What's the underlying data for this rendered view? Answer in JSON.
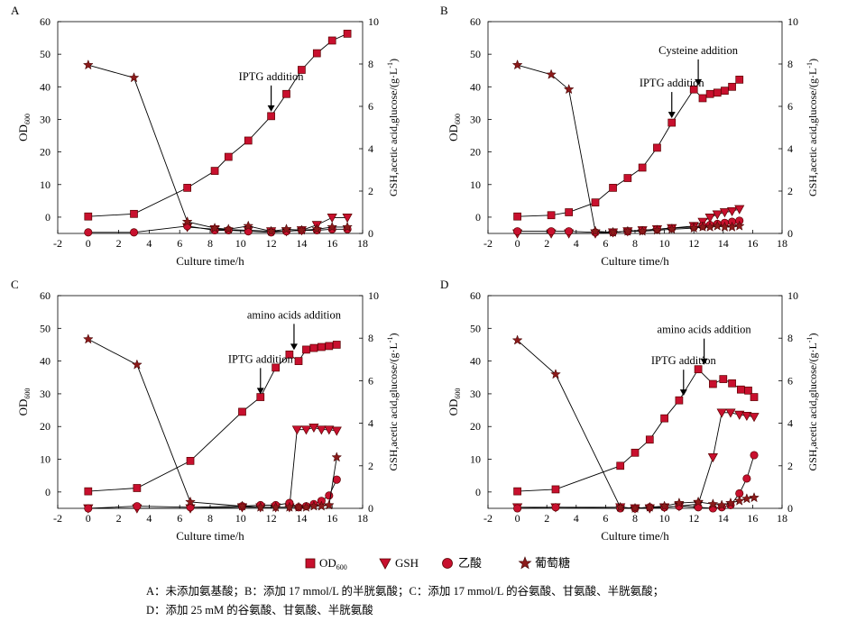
{
  "colors": {
    "marker": "#c8102e",
    "edge": "#5a0000",
    "line": "#000000"
  },
  "legend": [
    {
      "symbol": "square",
      "label": "OD",
      "sub": "600"
    },
    {
      "symbol": "triangle-down",
      "label": "GSH",
      "sub": ""
    },
    {
      "symbol": "circle",
      "label": "乙酸",
      "sub": ""
    },
    {
      "symbol": "star",
      "label": "葡萄糖",
      "sub": ""
    }
  ],
  "caption": {
    "line1": "A：未添加氨基酸；B：添加 17 mmol/L 的半胱氨酸；C：添加 17 mmol/L 的谷氨酸、甘氨酸、半胱氨酸；",
    "line2": "D：添加 25 mM 的谷氨酸、甘氨酸、半胱氨酸"
  },
  "chart_data": [
    {
      "type": "line",
      "panel": "A",
      "xlabel": "Culture time/h",
      "ylabel": "OD",
      "ylabel_sub": "600",
      "y2label": "GSH,acetic acid,glucose/(g·L",
      "y2label_sup": "-1",
      "y2label_end": ")",
      "xlim": [
        -2,
        18
      ],
      "xticks": [
        -2,
        0,
        2,
        4,
        6,
        8,
        10,
        12,
        14,
        16,
        18
      ],
      "ylim": [
        -5,
        60
      ],
      "yticks": [
        0,
        10,
        20,
        30,
        40,
        50,
        60
      ],
      "y2lim": [
        0,
        10
      ],
      "y2ticks": [
        0,
        2,
        4,
        6,
        8,
        10
      ],
      "series": [
        {
          "name": "OD600",
          "axis": "left",
          "marker": "square",
          "x": [
            0,
            3,
            6.5,
            8.3,
            9.2,
            10.5,
            12,
            13,
            14,
            15,
            16,
            17
          ],
          "y": [
            0.2,
            1.0,
            9.0,
            14.2,
            18.5,
            23.5,
            31,
            37.8,
            45.2,
            50.3,
            54.2,
            56.3
          ]
        },
        {
          "name": "GSH",
          "axis": "right",
          "marker": "triangle-down",
          "x": [
            6.5,
            8.3,
            10.5,
            12,
            13,
            14,
            15,
            16,
            17
          ],
          "y": [
            0.3,
            0.2,
            0.15,
            0.1,
            0.1,
            0.15,
            0.4,
            0.75,
            0.75
          ]
        },
        {
          "name": "乙酸",
          "axis": "right",
          "marker": "circle",
          "x": [
            0,
            3,
            6.5,
            8.3,
            9.2,
            10.5,
            12,
            13,
            14,
            15,
            16,
            17
          ],
          "y": [
            0.05,
            0.05,
            0.35,
            0.15,
            0.15,
            0.1,
            0.05,
            0.1,
            0.15,
            0.15,
            0.2,
            0.2
          ]
        },
        {
          "name": "葡萄糖",
          "axis": "right",
          "marker": "star",
          "x": [
            0,
            3,
            6.5,
            8.3,
            9.2,
            10.5,
            12,
            13,
            14,
            15,
            16,
            17
          ],
          "y": [
            7.95,
            7.35,
            0.55,
            0.25,
            0.2,
            0.35,
            0.1,
            0.2,
            0.15,
            0.2,
            0.3,
            0.3
          ]
        }
      ],
      "annotations": [
        {
          "text": "IPTG addition",
          "x": 12,
          "y": 31
        }
      ]
    },
    {
      "type": "line",
      "panel": "B",
      "xlabel": "Culture time/h",
      "ylabel": "OD",
      "ylabel_sub": "600",
      "y2label": "GSH,acetic acid,glucose/(g·L",
      "y2label_sup": "-1",
      "y2label_end": ")",
      "xlim": [
        -2,
        18
      ],
      "xticks": [
        -2,
        0,
        2,
        4,
        6,
        8,
        10,
        12,
        14,
        16,
        18
      ],
      "ylim": [
        -5,
        60
      ],
      "yticks": [
        0,
        10,
        20,
        30,
        40,
        50,
        60
      ],
      "y2lim": [
        0,
        10
      ],
      "y2ticks": [
        0,
        2,
        4,
        6,
        8,
        10
      ],
      "series": [
        {
          "name": "OD600",
          "axis": "left",
          "marker": "square",
          "x": [
            0,
            2.3,
            3.5,
            5.3,
            6.5,
            7.5,
            8.5,
            9.5,
            10.5,
            12,
            12.6,
            13.1,
            13.6,
            14.1,
            14.6,
            15.1
          ],
          "y": [
            0.2,
            0.6,
            1.5,
            4.5,
            9,
            12,
            15.2,
            21.3,
            29,
            39.2,
            36.5,
            37.8,
            38.2,
            38.8,
            40,
            42.2
          ]
        },
        {
          "name": "GSH",
          "axis": "right",
          "marker": "triangle-down",
          "x": [
            0,
            2.3,
            3.5,
            5.3,
            6.5,
            7.5,
            8.5,
            9.5,
            10.5,
            12,
            12.6,
            13.1,
            13.6,
            14.1,
            14.6,
            15.1
          ],
          "y": [
            0.0,
            0.0,
            0.0,
            0.0,
            0.05,
            0.1,
            0.15,
            0.2,
            0.25,
            0.35,
            0.55,
            0.75,
            0.9,
            1.0,
            1.05,
            1.15
          ]
        },
        {
          "name": "乙酸",
          "axis": "right",
          "marker": "circle",
          "x": [
            0,
            2.3,
            3.5,
            5.3,
            6.5,
            7.5,
            8.5,
            9.5,
            10.5,
            12,
            12.6,
            13.1,
            13.6,
            14.1,
            14.6,
            15.1
          ],
          "y": [
            0.1,
            0.1,
            0.1,
            0.05,
            0.05,
            0.1,
            0.15,
            0.2,
            0.25,
            0.3,
            0.35,
            0.4,
            0.45,
            0.5,
            0.55,
            0.6
          ]
        },
        {
          "name": "葡萄糖",
          "axis": "right",
          "marker": "star",
          "x": [
            0,
            2.3,
            3.5,
            5.3,
            6.5,
            7.5,
            8.5,
            9.5,
            10.5,
            12,
            12.6,
            13.1,
            13.6,
            14.1,
            14.6,
            15.1
          ],
          "y": [
            7.95,
            7.5,
            6.8,
            0.1,
            0.05,
            0.1,
            0.1,
            0.15,
            0.2,
            0.25,
            0.3,
            0.3,
            0.35,
            0.3,
            0.3,
            0.35
          ]
        }
      ],
      "annotations": [
        {
          "text": "IPTG addition",
          "x": 10.5,
          "y": 29
        },
        {
          "text": "Cysteine addition",
          "x": 12.3,
          "y": 39
        }
      ]
    },
    {
      "type": "line",
      "panel": "C",
      "xlabel": "Culture time/h",
      "ylabel": "OD",
      "ylabel_sub": "600",
      "y2label": "GSH,acetic acid,glucose/(g·L",
      "y2label_sup": "-1",
      "y2label_end": ")",
      "xlim": [
        -2,
        18
      ],
      "xticks": [
        -2,
        0,
        2,
        4,
        6,
        8,
        10,
        12,
        14,
        16,
        18
      ],
      "ylim": [
        -5,
        60
      ],
      "yticks": [
        0,
        10,
        20,
        30,
        40,
        50,
        60
      ],
      "y2lim": [
        0,
        10
      ],
      "y2ticks": [
        0,
        2,
        4,
        6,
        8,
        10
      ],
      "series": [
        {
          "name": "OD600",
          "axis": "left",
          "marker": "square",
          "x": [
            0,
            3.2,
            6.7,
            10.1,
            11.3,
            12.3,
            13.2,
            13.8,
            14.3,
            14.8,
            15.3,
            15.8,
            16.3
          ],
          "y": [
            0.2,
            1.2,
            9.5,
            24.5,
            29,
            38,
            42,
            40,
            43.5,
            44,
            44.3,
            44.6,
            45
          ]
        },
        {
          "name": "GSH",
          "axis": "right",
          "marker": "triangle-down",
          "x": [
            0,
            3.2,
            6.7,
            10.1,
            11.3,
            12.3,
            13.2,
            13.7,
            14.3,
            14.8,
            15.3,
            15.8,
            16.3
          ],
          "y": [
            0.0,
            0.0,
            0.0,
            0.05,
            0.05,
            0.05,
            0.05,
            3.7,
            3.7,
            3.8,
            3.7,
            3.7,
            3.65
          ]
        },
        {
          "name": "乙酸",
          "axis": "right",
          "marker": "circle",
          "x": [
            0,
            3.2,
            6.7,
            10.1,
            11.3,
            12.3,
            13.2,
            13.8,
            14.3,
            14.8,
            15.3,
            15.8,
            16.3
          ],
          "y": [
            0.0,
            0.1,
            0.05,
            0.1,
            0.15,
            0.15,
            0.25,
            0.05,
            0.1,
            0.2,
            0.35,
            0.6,
            1.35
          ]
        },
        {
          "name": "葡萄糖",
          "axis": "right",
          "marker": "star",
          "x": [
            0,
            3.2,
            6.7,
            10.1,
            11.3,
            12.3,
            13.2,
            13.8,
            14.3,
            14.8,
            15.3,
            15.8,
            16.3
          ],
          "y": [
            7.95,
            6.75,
            0.3,
            0.1,
            0.05,
            0.05,
            0.05,
            0.05,
            0.05,
            0.1,
            0.1,
            0.15,
            2.4
          ]
        }
      ],
      "annotations": [
        {
          "text": "IPTG addition",
          "x": 11.3,
          "y": 28.5
        },
        {
          "text": "amino acids addition",
          "x": 13.5,
          "y": 42
        }
      ]
    },
    {
      "type": "line",
      "panel": "D",
      "xlabel": "Culture time/h",
      "ylabel": "OD",
      "ylabel_sub": "600",
      "y2label": "GSH,acetic acid,glucose/(g·L",
      "y2label_sup": "-1",
      "y2label_end": ")",
      "xlim": [
        -2,
        18
      ],
      "xticks": [
        -2,
        0,
        2,
        4,
        6,
        8,
        10,
        12,
        14,
        16,
        18
      ],
      "ylim": [
        -5,
        60
      ],
      "yticks": [
        0,
        10,
        20,
        30,
        40,
        50,
        60
      ],
      "y2lim": [
        0,
        10
      ],
      "y2ticks": [
        0,
        2,
        4,
        6,
        8,
        10
      ],
      "series": [
        {
          "name": "OD600",
          "axis": "left",
          "marker": "square",
          "x": [
            0,
            2.6,
            7,
            8,
            9,
            10,
            11,
            12.3,
            13.3,
            14,
            14.6,
            15.2,
            15.7,
            16.1
          ],
          "y": [
            0.2,
            0.8,
            8,
            12,
            16,
            22.5,
            28,
            37.5,
            33,
            34.5,
            33.2,
            31.3,
            31,
            29
          ]
        },
        {
          "name": "GSH",
          "axis": "right",
          "marker": "triangle-down",
          "x": [
            0,
            2.6,
            7,
            8,
            9,
            10,
            11,
            12.3,
            13.3,
            13.9,
            14.5,
            15.1,
            15.6,
            16.1
          ],
          "y": [
            0.05,
            0.05,
            0.05,
            0.0,
            0.0,
            0.05,
            0.1,
            0.2,
            2.4,
            4.5,
            4.5,
            4.4,
            4.35,
            4.3
          ]
        },
        {
          "name": "乙酸",
          "axis": "right",
          "marker": "circle",
          "x": [
            0,
            2.6,
            7,
            8,
            9,
            10,
            11,
            12.3,
            13.3,
            13.9,
            14.5,
            15.1,
            15.6,
            16.1
          ],
          "y": [
            0.0,
            0.05,
            0.0,
            0.0,
            0.05,
            0.05,
            0.1,
            0.05,
            0.0,
            0.05,
            0.15,
            0.7,
            1.4,
            2.5
          ]
        },
        {
          "name": "葡萄糖",
          "axis": "right",
          "marker": "star",
          "x": [
            0,
            2.6,
            7,
            8,
            9,
            10,
            11,
            12.3,
            13.3,
            13.9,
            14.5,
            15.1,
            15.6,
            16.1
          ],
          "y": [
            7.9,
            6.3,
            0.05,
            0.0,
            0.05,
            0.1,
            0.25,
            0.3,
            0.2,
            0.15,
            0.25,
            0.35,
            0.45,
            0.5
          ]
        }
      ],
      "annotations": [
        {
          "text": "IPTG addition",
          "x": 11.3,
          "y": 28
        },
        {
          "text": "amino acids addition",
          "x": 12.7,
          "y": 37.5
        }
      ]
    }
  ]
}
